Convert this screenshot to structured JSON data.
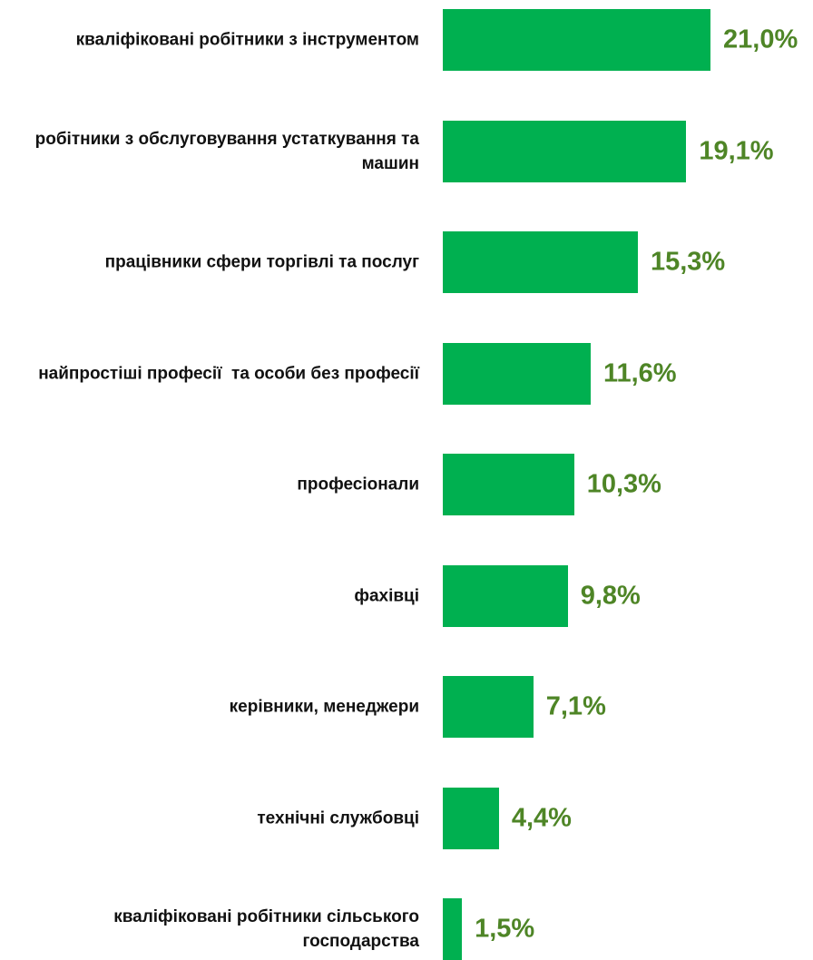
{
  "chart_data": {
    "type": "bar",
    "orientation": "horizontal",
    "categories": [
      "кваліфіковані робітники з інструментом",
      "робітники з обслуговування устаткування та машин",
      "працівники сфери торгівлі та послуг",
      "найпростіші професії  та особи без професії",
      "професіонали",
      "фахівці",
      "керівники, менеджери",
      "технічні службовці",
      "кваліфіковані робітники сільського господарства"
    ],
    "values": [
      21.0,
      19.1,
      15.3,
      11.6,
      10.3,
      9.8,
      7.1,
      4.4,
      1.5
    ],
    "value_labels": [
      "21,0%",
      "19,1%",
      "15,3%",
      "11,6%",
      "10,3%",
      "9,8%",
      "7,1%",
      "4,4%",
      "1,5%"
    ],
    "color": "#00b050",
    "label_color": "#4e8526"
  }
}
